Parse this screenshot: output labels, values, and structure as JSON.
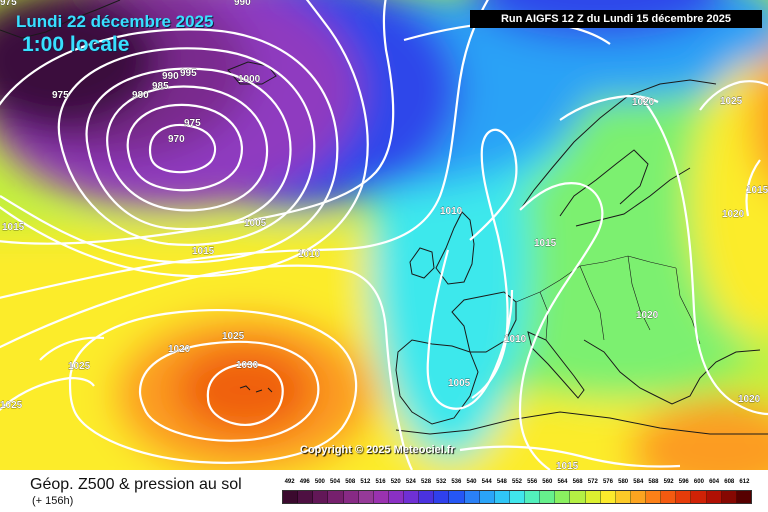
{
  "header": {
    "valid_date": "Lundi 22 décembre 2025",
    "valid_time": "1:00 locale",
    "run_info": "Run AIGFS 12 Z du Lundi 15 décembre 2025"
  },
  "copyright": "Copyright © 2025 Meteociel.fr",
  "footer": {
    "title": "Géop. Z500 & pression au sol",
    "subtitle": "(+ 156h)"
  },
  "legend": {
    "values": [
      "492",
      "496",
      "500",
      "504",
      "508",
      "512",
      "516",
      "520",
      "524",
      "528",
      "532",
      "536",
      "540",
      "544",
      "548",
      "552",
      "556",
      "560",
      "564",
      "568",
      "572",
      "576",
      "580",
      "584",
      "588",
      "592",
      "596",
      "600",
      "604",
      "608",
      "612"
    ],
    "colors": [
      "#3b0a2e",
      "#4e1042",
      "#621757",
      "#76206d",
      "#872a85",
      "#953a98",
      "#9a32b0",
      "#8a30c4",
      "#6f30d4",
      "#4a32e0",
      "#2f40ec",
      "#2556f4",
      "#2a80f6",
      "#2aa4f8",
      "#30c6f6",
      "#40e6ec",
      "#52f0bc",
      "#66f08c",
      "#8af060",
      "#b4f044",
      "#dcf030",
      "#fcea2c",
      "#fcca28",
      "#fca420",
      "#fc8018",
      "#f45a10",
      "#e63c0a",
      "#d02206",
      "#b01004",
      "#860802",
      "#560000"
    ]
  },
  "map": {
    "colors": {
      "deep_purple": "#3a0c3c",
      "purple": "#7a2a8e",
      "violet": "#8f3ac0",
      "blue": "#2f46ea",
      "light_blue": "#2aa2f6",
      "cyan": "#3ee8ec",
      "green": "#7cf070",
      "yellow_green": "#c4f03c",
      "yellow": "#fcec2c",
      "orange": "#fc9c20",
      "dark_orange": "#f06010",
      "coast": "#1a1a1a",
      "isobar": "#ffffff"
    },
    "isobar_labels": [
      {
        "id": "l975-a",
        "text": "975"
      },
      {
        "id": "l990",
        "text": "990"
      },
      {
        "id": "l995",
        "text": "995"
      },
      {
        "id": "l985",
        "text": "985"
      },
      {
        "id": "l980",
        "text": "980"
      },
      {
        "id": "l1000",
        "text": "1000"
      },
      {
        "id": "l975-b",
        "text": "975"
      },
      {
        "id": "l970",
        "text": "970"
      },
      {
        "id": "l1005-a",
        "text": "1005"
      },
      {
        "id": "l1015-a",
        "text": "1015"
      },
      {
        "id": "l1010-a",
        "text": "1010"
      },
      {
        "id": "l1010-b",
        "text": "1010"
      },
      {
        "id": "l1015-b",
        "text": "1015"
      },
      {
        "id": "l1020-a",
        "text": "1020"
      },
      {
        "id": "l1025-a",
        "text": "1025"
      },
      {
        "id": "l1015-c",
        "text": "1015"
      },
      {
        "id": "l1020-b",
        "text": "1020"
      },
      {
        "id": "l1020-c",
        "text": "1020"
      },
      {
        "id": "l1010-c",
        "text": "1010"
      },
      {
        "id": "l1025-b",
        "text": "1025"
      },
      {
        "id": "l1020-d",
        "text": "1020"
      },
      {
        "id": "l1025-c",
        "text": "1025"
      },
      {
        "id": "l1030",
        "text": "1030"
      },
      {
        "id": "l1025-d",
        "text": "1025"
      },
      {
        "id": "l1005-b",
        "text": "1005"
      },
      {
        "id": "l1020-e",
        "text": "1020"
      },
      {
        "id": "l1015-d",
        "text": "1015"
      },
      {
        "id": "l1015-e",
        "text": "1015"
      },
      {
        "id": "l990-b",
        "text": "990"
      },
      {
        "id": "l975-c",
        "text": "975"
      }
    ]
  }
}
